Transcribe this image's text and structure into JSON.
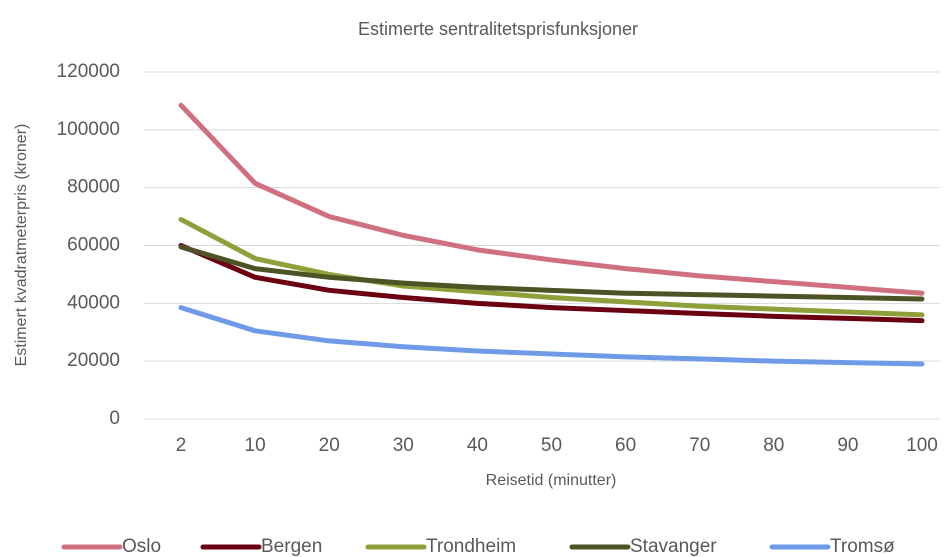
{
  "chart_data": {
    "type": "line",
    "title": "Estimerte sentralitetsprisfunksjoner",
    "x_label": "Reisetid (minutter)",
    "y_label": "Estimert kvadratmeterpris (kroner)",
    "categories": [
      "2",
      "10",
      "20",
      "30",
      "40",
      "50",
      "60",
      "70",
      "80",
      "90",
      "100"
    ],
    "series": [
      {
        "name": "Oslo",
        "color": "#d0707f",
        "values": [
          108500,
          81500,
          70000,
          63500,
          58500,
          55000,
          52000,
          49500,
          47500,
          45500,
          43500
        ]
      },
      {
        "name": "Bergen",
        "color": "#6b0010",
        "values": [
          60000,
          49000,
          44500,
          42000,
          40000,
          38500,
          37500,
          36500,
          35500,
          34800,
          34000
        ]
      },
      {
        "name": "Trondheim",
        "color": "#8fa03a",
        "values": [
          69000,
          55500,
          50000,
          46000,
          44000,
          42000,
          40500,
          39000,
          38000,
          37000,
          36000
        ]
      },
      {
        "name": "Stavanger",
        "color": "#4e5225",
        "values": [
          59500,
          52000,
          49000,
          47000,
          45500,
          44500,
          43500,
          43000,
          42500,
          42000,
          41500
        ]
      },
      {
        "name": "Tromsø",
        "color": "#6f9ae8",
        "values": [
          38500,
          30500,
          27000,
          25000,
          23500,
          22500,
          21500,
          20800,
          20000,
          19500,
          19000
        ]
      }
    ],
    "ylim": [
      0,
      120000
    ],
    "yticks": [
      0,
      20000,
      40000,
      60000,
      80000,
      100000,
      120000
    ],
    "grid": true,
    "legend": "bottom"
  }
}
